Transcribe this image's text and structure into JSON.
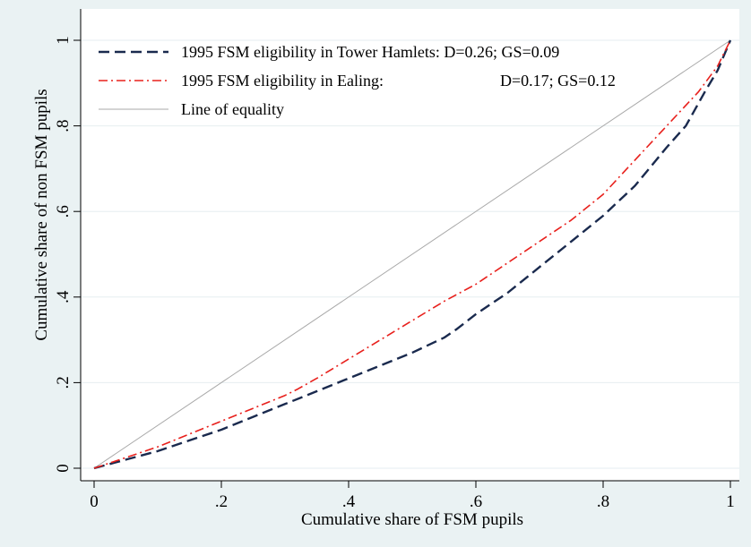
{
  "chart_data": {
    "type": "line",
    "title": "",
    "xlabel": "Cumulative share of FSM pupils",
    "ylabel": "Cumulative share of non FSM pupils",
    "xlim": [
      0,
      1
    ],
    "ylim": [
      0,
      1
    ],
    "xticks": [
      0,
      0.2,
      0.4,
      0.6,
      0.8,
      1
    ],
    "xtick_labels": [
      "0",
      ".2",
      ".4",
      ".6",
      ".8",
      "1"
    ],
    "yticks": [
      0,
      0.2,
      0.4,
      0.6,
      0.8,
      1
    ],
    "ytick_labels": [
      "0",
      ".2",
      ".4",
      ".6",
      ".8",
      "1"
    ],
    "grid": "horizontal",
    "legend_position": "top-left",
    "series": [
      {
        "name": "1995 FSM eligibility in Tower Hamlets: D=0.26; GS=0.09",
        "color": "#1a2a4e",
        "style": "dashed",
        "x": [
          0,
          0.05,
          0.1,
          0.15,
          0.2,
          0.25,
          0.3,
          0.35,
          0.4,
          0.45,
          0.5,
          0.55,
          0.57,
          0.6,
          0.65,
          0.7,
          0.75,
          0.8,
          0.85,
          0.9,
          0.93,
          0.96,
          0.98,
          1
        ],
        "y": [
          0,
          0.02,
          0.04,
          0.065,
          0.09,
          0.12,
          0.15,
          0.18,
          0.21,
          0.24,
          0.27,
          0.305,
          0.325,
          0.36,
          0.41,
          0.47,
          0.53,
          0.59,
          0.66,
          0.75,
          0.8,
          0.88,
          0.93,
          1
        ]
      },
      {
        "name": "1995 FSM eligibility in Ealing:",
        "name_stats": "D=0.17; GS=0.12",
        "color": "#e8201c",
        "style": "dashdot",
        "x": [
          0,
          0.05,
          0.1,
          0.15,
          0.2,
          0.25,
          0.3,
          0.32,
          0.35,
          0.4,
          0.45,
          0.5,
          0.55,
          0.6,
          0.65,
          0.7,
          0.75,
          0.8,
          0.85,
          0.9,
          0.95,
          0.98,
          1
        ],
        "y": [
          0,
          0.025,
          0.05,
          0.08,
          0.11,
          0.14,
          0.17,
          0.185,
          0.21,
          0.255,
          0.3,
          0.345,
          0.39,
          0.43,
          0.48,
          0.53,
          0.58,
          0.64,
          0.72,
          0.8,
          0.88,
          0.94,
          1
        ]
      },
      {
        "name": "Line of equality",
        "color": "#a8a8a8",
        "style": "solid",
        "x": [
          0,
          1
        ],
        "y": [
          0,
          1
        ]
      }
    ]
  }
}
